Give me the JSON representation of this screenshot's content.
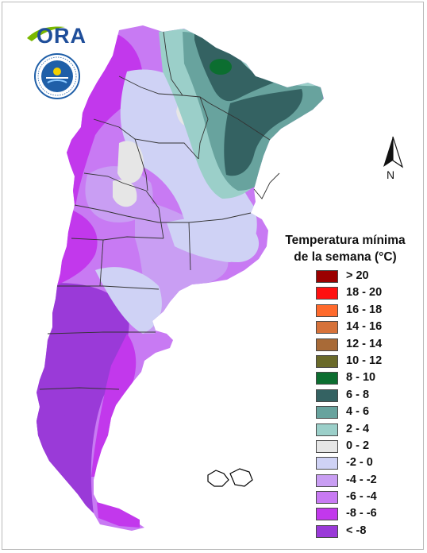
{
  "map": {
    "legend_title_line1": "Temperatura mínima",
    "legend_title_line2": "de la semana (°C)",
    "north_label": "N",
    "legend": [
      {
        "label": "> 20",
        "color": "#9b0000"
      },
      {
        "label": "18 - 20",
        "color": "#ff1010"
      },
      {
        "label": "16 - 18",
        "color": "#ff6a2c"
      },
      {
        "label": "14 - 16",
        "color": "#d6723a"
      },
      {
        "label": "12 - 14",
        "color": "#a86a37"
      },
      {
        "label": "10 - 12",
        "color": "#6a6a2a"
      },
      {
        "label": "8 - 10",
        "color": "#0c6e30"
      },
      {
        "label": "6 - 8",
        "color": "#346262"
      },
      {
        "label": "4 - 6",
        "color": "#68a39e"
      },
      {
        "label": "2 - 4",
        "color": "#9bcfc9"
      },
      {
        "label": "0 - 2",
        "color": "#e6e6e6"
      },
      {
        "label": "-2 - 0",
        "color": "#cfd2f5"
      },
      {
        "label": "-4 - -2",
        "color": "#c99ef3"
      },
      {
        "label": "-6 - -4",
        "color": "#c87af3"
      },
      {
        "label": "-8 - -6",
        "color": "#c238ec"
      },
      {
        "label": "< -8",
        "color": "#9a3ad8"
      }
    ]
  },
  "logos": {
    "ora_text": "ORA"
  },
  "colors": {
    "boundary": "#333333",
    "ora_green": "#7ab800",
    "ora_blue": "#1f4e9a",
    "smn_blue": "#1f5fa8"
  }
}
